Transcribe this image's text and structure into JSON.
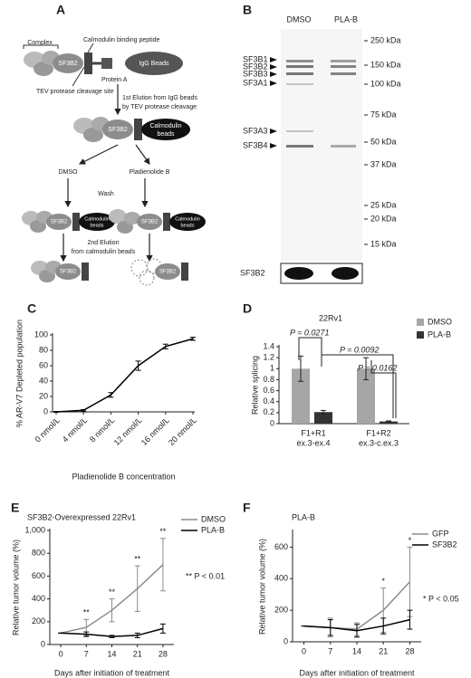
{
  "panel_a": {
    "label": "A",
    "complex": "Complex",
    "peptide": "Calmodulin binding peptide",
    "protein": "SF3B2",
    "igg_beads": "IgG Beads",
    "protein_a": "Protein A",
    "tev_site": "TEV protease cleavage site",
    "step1": [
      "1st Elution from IgG beads",
      "by TEV protease cleavage"
    ],
    "beads_lines": [
      "Calmodulin",
      "beads"
    ],
    "dmso": "DMSO",
    "plab": "Pladienolide B",
    "wash": "Wash",
    "step2": [
      "2nd Elution",
      "from calmodulin beads"
    ]
  },
  "panel_b": {
    "label": "B",
    "lanes": [
      "DMSO",
      "PLA-B"
    ],
    "markers": [
      "250 kDa",
      "150 kDa",
      "100 kDa",
      "75 kDa",
      "50 kDa",
      "37 kDa",
      "25 kDa",
      "20 kDa",
      "15 kDa"
    ],
    "bands": [
      "SF3B1",
      "SF3B2",
      "SF3B3",
      "SF3A1",
      "SF3A3",
      "SF3B4"
    ],
    "western": "SF3B2"
  },
  "chart_data": [
    {
      "panel": "C",
      "type": "line",
      "categories": [
        "0 nmol/L",
        "4 nmol/L",
        "8 nmol/L",
        "12 nmol/L",
        "16 nmol/L",
        "20 nmol/L"
      ],
      "series": [
        {
          "color": "#000000",
          "values": [
            0,
            2,
            22,
            60,
            85,
            95
          ],
          "errors": [
            0.5,
            1,
            3,
            6,
            3,
            2
          ]
        }
      ],
      "ylim": [
        0,
        100
      ],
      "yticks": [
        0,
        20,
        40,
        60,
        80,
        100
      ],
      "ylabel": "% AR-V7 Depleted population",
      "xlabel": "Pladienolide B concentration"
    },
    {
      "panel": "D",
      "type": "bar",
      "title": "22Rv1",
      "categories": [
        "F1+R1",
        "F1+R2"
      ],
      "category_details": [
        "ex.3-ex.4",
        "ex.3-c.ex.3"
      ],
      "series": [
        {
          "name": "DMSO",
          "color": "#a6a6a6",
          "values": [
            1,
            1
          ],
          "errors": [
            0.23,
            0.2
          ]
        },
        {
          "name": "PLA-B",
          "color": "#333333",
          "values": [
            0.21,
            0.04
          ],
          "errors": [
            0.03,
            0.01
          ]
        }
      ],
      "ylim": [
        0,
        1.4
      ],
      "yticks": [
        0,
        0.2,
        0.4,
        0.6,
        0.8,
        1,
        1.2,
        1.4
      ],
      "ylabel": "Relative splicing",
      "annotations": [
        "P = 0.0271",
        "P = 0.0092",
        "P = 0.0162"
      ],
      "legend": "upper right"
    },
    {
      "panel": "E",
      "type": "line",
      "title": "SF3B2-Overexpressed 22Rv1",
      "x": [
        0,
        7,
        14,
        21,
        28
      ],
      "series": [
        {
          "name": "DMSO",
          "color": "#8c8c8c",
          "values": [
            100,
            150,
            300,
            490,
            700
          ],
          "errors": [
            0,
            70,
            100,
            200,
            230
          ]
        },
        {
          "name": "PLA-B",
          "color": "#000000",
          "values": [
            100,
            90,
            70,
            80,
            140
          ],
          "errors": [
            0,
            20,
            10,
            20,
            40
          ]
        }
      ],
      "xlim": [
        -3,
        31
      ],
      "xticks": [
        0,
        7,
        14,
        21,
        28
      ],
      "ylim": [
        0,
        1000
      ],
      "yticks": [
        0,
        200,
        400,
        600,
        800,
        {
          "value": 1000,
          "label": "1,000"
        }
      ],
      "xlabel": "Days after initiation of treatment",
      "ylabel": "Relative tumor volume (%)",
      "significance": [
        {
          "x": 7,
          "label": "**"
        },
        {
          "x": 14,
          "label": "**"
        },
        {
          "x": 21,
          "label": "**"
        },
        {
          "x": 28,
          "label": "**"
        }
      ],
      "note": "** P < 0.01",
      "legend": "upper right"
    },
    {
      "panel": "F",
      "type": "line",
      "title": "PLA-B",
      "x": [
        0,
        7,
        14,
        21,
        28
      ],
      "series": [
        {
          "name": "GFP",
          "color": "#8c8c8c",
          "values": [
            100,
            90,
            80,
            200,
            380
          ],
          "errors": [
            0,
            60,
            40,
            140,
            220
          ]
        },
        {
          "name": "SF3B2",
          "color": "#000000",
          "values": [
            100,
            90,
            70,
            100,
            140
          ],
          "errors": [
            0,
            50,
            40,
            50,
            60
          ]
        }
      ],
      "xlim": [
        -3,
        31
      ],
      "xticks": [
        0,
        7,
        14,
        21,
        28
      ],
      "ylim": [
        0,
        700
      ],
      "yticks": [
        0,
        200,
        400,
        600
      ],
      "xlabel": "Days after initiation of treatment",
      "ylabel": "Relative tumor volume (%)",
      "significance": [
        {
          "x": 21,
          "label": "*"
        },
        {
          "x": 28,
          "label": "*"
        }
      ],
      "note": "* P < 0.05",
      "legend": "upper right"
    }
  ]
}
